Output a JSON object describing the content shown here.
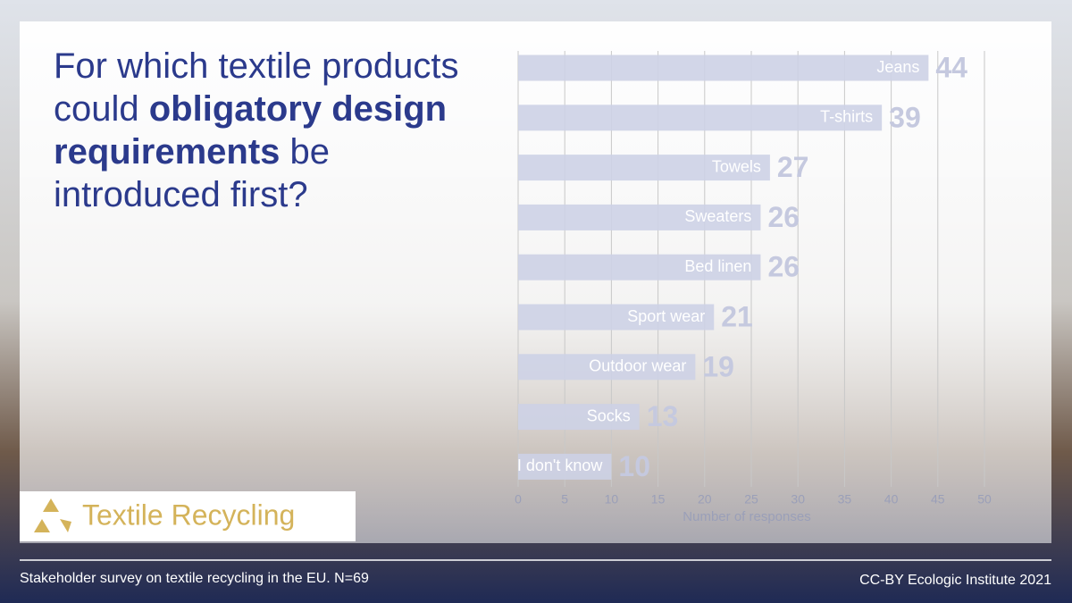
{
  "title": {
    "before": "For which textile products could ",
    "emphasis": "obligatory design requirements",
    "after": " be introduced first?"
  },
  "chart_data": {
    "type": "bar",
    "orientation": "horizontal",
    "categories": [
      "Jeans",
      "T-shirts",
      "Towels",
      "Sweaters",
      "Bed linen",
      "Sport wear",
      "Outdoor wear",
      "Socks",
      "I don't know"
    ],
    "values": [
      44,
      39,
      27,
      26,
      26,
      21,
      19,
      13,
      10
    ],
    "color": "#cdd1e6",
    "xlim": [
      0,
      50
    ],
    "xticks": [
      0,
      5,
      10,
      15,
      20,
      25,
      30,
      35,
      40,
      45,
      50
    ],
    "xlabel": "Number of responses",
    "grid": true
  },
  "logo": "Textile Recycling",
  "footer": {
    "left": "Stakeholder survey on textile recycling in the EU. N=69",
    "right": "CC-BY Ecologic Institute 2021"
  }
}
